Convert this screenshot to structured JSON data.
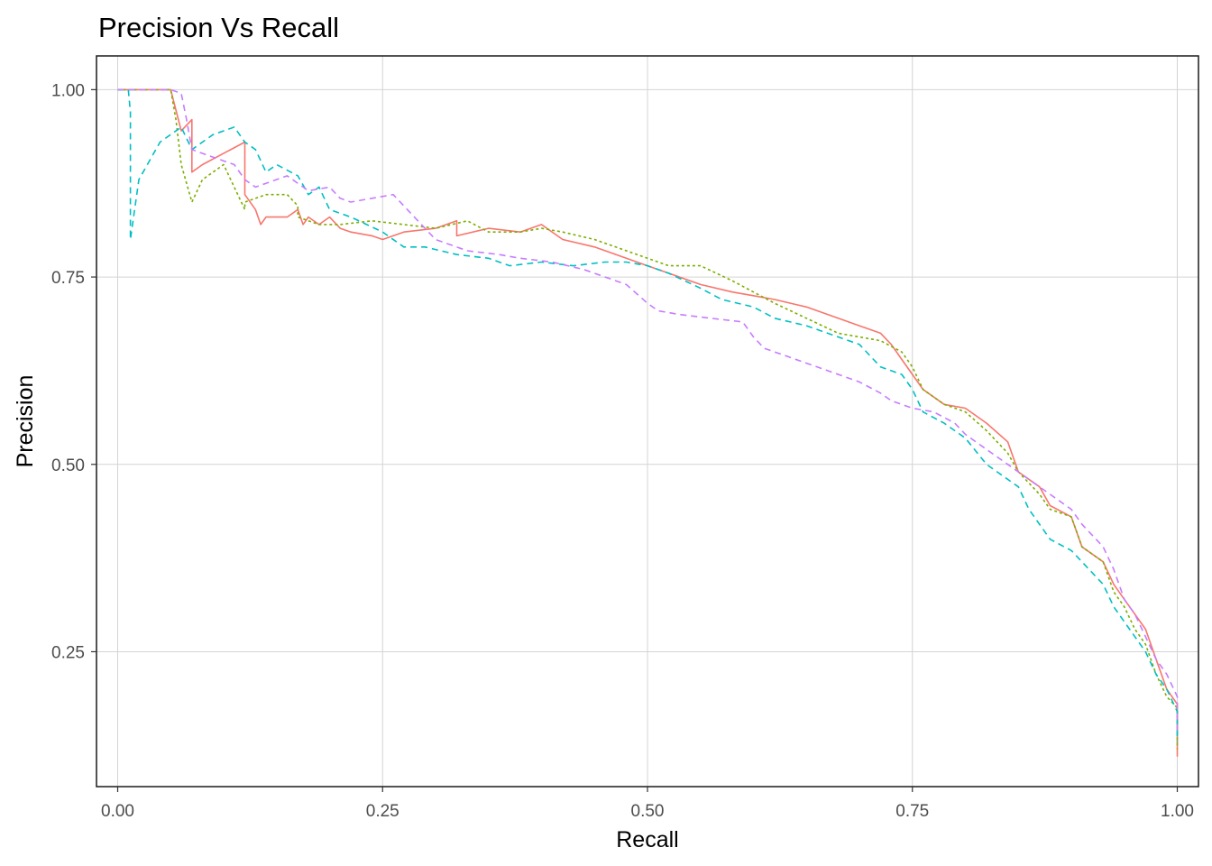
{
  "chart_data": {
    "type": "line",
    "title": "Precision Vs Recall",
    "xlabel": "Recall",
    "ylabel": "Precision",
    "xlim": [
      -0.02,
      1.02
    ],
    "ylim": [
      0.07,
      1.045
    ],
    "x_ticks": [
      0.0,
      0.25,
      0.5,
      0.75,
      1.0
    ],
    "x_tick_labels": [
      "0.00",
      "0.25",
      "0.50",
      "0.75",
      "1.00"
    ],
    "y_ticks": [
      0.25,
      0.5,
      0.75,
      1.0
    ],
    "y_tick_labels": [
      "0.25",
      "0.50",
      "0.75",
      "1.00"
    ],
    "grid": true,
    "legend": "none",
    "series": [
      {
        "color": "#F8766D",
        "dash": "solid",
        "x": [
          0.0,
          0.05,
          0.06,
          0.07,
          0.07,
          0.08,
          0.12,
          0.12,
          0.13,
          0.135,
          0.14,
          0.16,
          0.17,
          0.175,
          0.18,
          0.19,
          0.2,
          0.21,
          0.22,
          0.24,
          0.25,
          0.27,
          0.3,
          0.32,
          0.32,
          0.35,
          0.38,
          0.4,
          0.42,
          0.45,
          0.48,
          0.5,
          0.52,
          0.55,
          0.58,
          0.6,
          0.62,
          0.65,
          0.68,
          0.7,
          0.72,
          0.73,
          0.74,
          0.75,
          0.76,
          0.78,
          0.8,
          0.82,
          0.84,
          0.85,
          0.87,
          0.88,
          0.9,
          0.91,
          0.93,
          0.94,
          0.95,
          0.96,
          0.97,
          0.98,
          0.99,
          1.0,
          1.0
        ],
        "y": [
          1.0,
          1.0,
          0.945,
          0.96,
          0.89,
          0.9,
          0.93,
          0.86,
          0.84,
          0.82,
          0.83,
          0.83,
          0.84,
          0.82,
          0.83,
          0.82,
          0.83,
          0.815,
          0.81,
          0.805,
          0.8,
          0.81,
          0.815,
          0.825,
          0.805,
          0.815,
          0.81,
          0.82,
          0.8,
          0.79,
          0.775,
          0.765,
          0.755,
          0.74,
          0.73,
          0.725,
          0.72,
          0.71,
          0.695,
          0.685,
          0.675,
          0.66,
          0.64,
          0.62,
          0.6,
          0.58,
          0.575,
          0.555,
          0.53,
          0.49,
          0.47,
          0.445,
          0.43,
          0.39,
          0.37,
          0.34,
          0.32,
          0.3,
          0.28,
          0.24,
          0.2,
          0.18,
          0.11
        ]
      },
      {
        "color": "#7CAE00",
        "dash": "dotted",
        "x": [
          0.0,
          0.05,
          0.055,
          0.06,
          0.07,
          0.08,
          0.1,
          0.12,
          0.12,
          0.14,
          0.16,
          0.17,
          0.17,
          0.19,
          0.21,
          0.24,
          0.27,
          0.3,
          0.33,
          0.35,
          0.38,
          0.4,
          0.42,
          0.45,
          0.47,
          0.5,
          0.52,
          0.55,
          0.58,
          0.6,
          0.62,
          0.65,
          0.68,
          0.7,
          0.72,
          0.74,
          0.75,
          0.76,
          0.78,
          0.8,
          0.82,
          0.84,
          0.85,
          0.87,
          0.88,
          0.9,
          0.91,
          0.93,
          0.94,
          0.95,
          0.96,
          0.97,
          0.98,
          0.99,
          1.0,
          1.0
        ],
        "y": [
          1.0,
          1.0,
          0.96,
          0.9,
          0.85,
          0.88,
          0.9,
          0.84,
          0.85,
          0.86,
          0.86,
          0.845,
          0.83,
          0.82,
          0.82,
          0.825,
          0.82,
          0.815,
          0.825,
          0.81,
          0.81,
          0.815,
          0.81,
          0.8,
          0.79,
          0.775,
          0.765,
          0.765,
          0.745,
          0.73,
          0.715,
          0.695,
          0.675,
          0.67,
          0.665,
          0.65,
          0.63,
          0.6,
          0.58,
          0.57,
          0.545,
          0.515,
          0.49,
          0.46,
          0.44,
          0.43,
          0.39,
          0.37,
          0.33,
          0.31,
          0.28,
          0.26,
          0.22,
          0.19,
          0.175,
          0.12
        ]
      },
      {
        "color": "#00BFC4",
        "dash": "dashed",
        "x": [
          0.0,
          0.01,
          0.012,
          0.012,
          0.02,
          0.04,
          0.06,
          0.07,
          0.09,
          0.11,
          0.12,
          0.13,
          0.14,
          0.15,
          0.17,
          0.18,
          0.19,
          0.2,
          0.22,
          0.25,
          0.27,
          0.29,
          0.32,
          0.35,
          0.37,
          0.4,
          0.43,
          0.46,
          0.48,
          0.5,
          0.52,
          0.55,
          0.57,
          0.6,
          0.62,
          0.65,
          0.68,
          0.7,
          0.71,
          0.72,
          0.74,
          0.75,
          0.76,
          0.78,
          0.8,
          0.82,
          0.83,
          0.85,
          0.86,
          0.88,
          0.9,
          0.91,
          0.93,
          0.94,
          0.95,
          0.96,
          0.97,
          0.98,
          0.99,
          1.0,
          1.0
        ],
        "y": [
          1.0,
          1.0,
          0.97,
          0.8,
          0.88,
          0.93,
          0.95,
          0.92,
          0.94,
          0.95,
          0.93,
          0.92,
          0.89,
          0.9,
          0.885,
          0.86,
          0.87,
          0.84,
          0.83,
          0.81,
          0.79,
          0.79,
          0.78,
          0.775,
          0.765,
          0.77,
          0.765,
          0.77,
          0.77,
          0.765,
          0.755,
          0.735,
          0.72,
          0.71,
          0.695,
          0.685,
          0.67,
          0.66,
          0.645,
          0.63,
          0.62,
          0.6,
          0.57,
          0.555,
          0.535,
          0.5,
          0.49,
          0.47,
          0.44,
          0.4,
          0.385,
          0.37,
          0.34,
          0.31,
          0.29,
          0.27,
          0.25,
          0.22,
          0.2,
          0.17,
          0.13
        ]
      },
      {
        "color": "#C77CFF",
        "dash": "dashed",
        "x": [
          0.0,
          0.05,
          0.06,
          0.065,
          0.07,
          0.09,
          0.11,
          0.12,
          0.13,
          0.14,
          0.16,
          0.18,
          0.2,
          0.21,
          0.22,
          0.24,
          0.26,
          0.28,
          0.3,
          0.33,
          0.36,
          0.38,
          0.41,
          0.44,
          0.46,
          0.48,
          0.5,
          0.51,
          0.53,
          0.56,
          0.59,
          0.6,
          0.61,
          0.63,
          0.65,
          0.67,
          0.7,
          0.72,
          0.73,
          0.75,
          0.77,
          0.79,
          0.8,
          0.82,
          0.84,
          0.86,
          0.88,
          0.9,
          0.91,
          0.93,
          0.94,
          0.95,
          0.96,
          0.97,
          0.98,
          0.99,
          1.0,
          1.0
        ],
        "y": [
          1.0,
          1.0,
          0.995,
          0.96,
          0.92,
          0.91,
          0.9,
          0.88,
          0.87,
          0.875,
          0.885,
          0.865,
          0.87,
          0.855,
          0.85,
          0.855,
          0.86,
          0.83,
          0.8,
          0.785,
          0.78,
          0.775,
          0.77,
          0.76,
          0.75,
          0.74,
          0.715,
          0.705,
          0.7,
          0.695,
          0.69,
          0.67,
          0.655,
          0.645,
          0.635,
          0.625,
          0.61,
          0.595,
          0.585,
          0.575,
          0.57,
          0.555,
          0.54,
          0.52,
          0.5,
          0.48,
          0.46,
          0.44,
          0.42,
          0.39,
          0.36,
          0.32,
          0.3,
          0.27,
          0.24,
          0.22,
          0.19,
          0.14
        ]
      }
    ]
  }
}
